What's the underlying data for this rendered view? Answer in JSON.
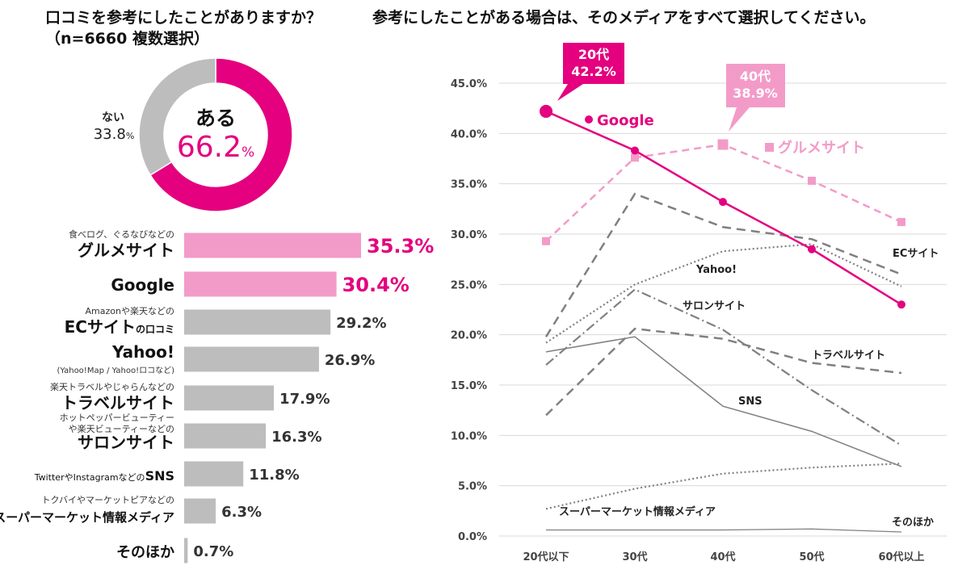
{
  "title_left_line1": "口コミを参考にしたことがありますか？",
  "title_left_line2": "（n=6660 複数選択）",
  "title_right": "参考にしたことがある場合は、そのメディアをすべて選択してください。",
  "colors": {
    "magenta": "#e4007f",
    "pink": "#f39bc8",
    "gray": "#bdbdbd",
    "dark_gray": "#808080"
  },
  "chart_data": [
    {
      "type": "pie",
      "title": "口コミを参考にしたことがありますか？（n=6660 複数選択）",
      "slices": [
        {
          "label": "ある",
          "value": 66.2,
          "display": "66.2",
          "unit": "%"
        },
        {
          "label": "ない",
          "value": 33.8,
          "display": "33.8",
          "unit": "%"
        }
      ]
    },
    {
      "type": "bar",
      "orientation": "horizontal",
      "xlim": [
        0,
        40
      ],
      "categories": [
        {
          "sub": "食べログ、ぐるなびなどの",
          "main": "グルメサイト",
          "value": 35.3,
          "label": "35.3%",
          "highlight": true
        },
        {
          "sub": "",
          "main": "Google",
          "value": 30.4,
          "label": "30.4%",
          "highlight": true
        },
        {
          "sub": "Amazonや楽天などの",
          "main": "ECサイト",
          "suffix": "の口コミ",
          "value": 29.2,
          "label": "29.2%",
          "highlight": false
        },
        {
          "sub": "",
          "main": "Yahoo!",
          "note": "(Yahoo!Map / Yahoo!ロコなど)",
          "value": 26.9,
          "label": "26.9%",
          "highlight": false
        },
        {
          "sub": "楽天トラベルやじゃらんなどの",
          "main": "トラベルサイト",
          "value": 17.9,
          "label": "17.9%",
          "highlight": false
        },
        {
          "sub": "ホットペッパービューティー",
          "sub2": "や楽天ビューティーなどの",
          "main": "サロンサイト",
          "value": 16.3,
          "label": "16.3%",
          "highlight": false
        },
        {
          "sub": "",
          "prefix": "TwitterやInstagramなどの",
          "main": "SNS",
          "value": 11.8,
          "label": "11.8%",
          "highlight": false
        },
        {
          "sub": "トクバイやマーケットピアなどの",
          "main": "スーパーマーケット情報メディア",
          "value": 6.3,
          "label": "6.3%",
          "highlight": false
        },
        {
          "sub": "",
          "main": "そのほか",
          "value": 0.7,
          "label": "0.7%",
          "highlight": false
        }
      ]
    },
    {
      "type": "line",
      "categories": [
        "20代以下",
        "30代",
        "40代",
        "50代",
        "60代以上"
      ],
      "ylim": [
        0,
        45
      ],
      "yticks": [
        "0.0%",
        "5.0%",
        "10.0%",
        "15.0%",
        "20.0%",
        "25.0%",
        "30.0%",
        "35.0%",
        "40.0%",
        "45.0%"
      ],
      "series": [
        {
          "name": "Google",
          "values": [
            42.2,
            38.3,
            33.2,
            28.5,
            23.0
          ]
        },
        {
          "name": "グルメサイト",
          "values": [
            29.3,
            37.6,
            38.9,
            35.3,
            31.2
          ]
        },
        {
          "name": "ECサイト",
          "values": [
            19.8,
            34.0,
            30.7,
            29.5,
            26.0
          ]
        },
        {
          "name": "Yahoo!",
          "values": [
            19.2,
            25.0,
            28.3,
            29.0,
            24.8
          ]
        },
        {
          "name": "サロンサイト",
          "values": [
            17.0,
            24.5,
            20.5,
            14.5,
            9.0
          ]
        },
        {
          "name": "トラベルサイト",
          "values": [
            12.0,
            20.6,
            19.6,
            17.2,
            16.2
          ]
        },
        {
          "name": "SNS",
          "values": [
            18.3,
            19.8,
            12.9,
            10.4,
            6.9
          ]
        },
        {
          "name": "スーパーマーケット情報メディア",
          "values": [
            2.7,
            4.7,
            6.2,
            6.8,
            7.2
          ]
        },
        {
          "name": "そのほか",
          "values": [
            0.6,
            0.6,
            0.6,
            0.7,
            0.4
          ]
        }
      ],
      "callouts": [
        {
          "line1": "20代",
          "line2": "42.2%"
        },
        {
          "line1": "40代",
          "line2": "38.9%"
        }
      ]
    }
  ]
}
